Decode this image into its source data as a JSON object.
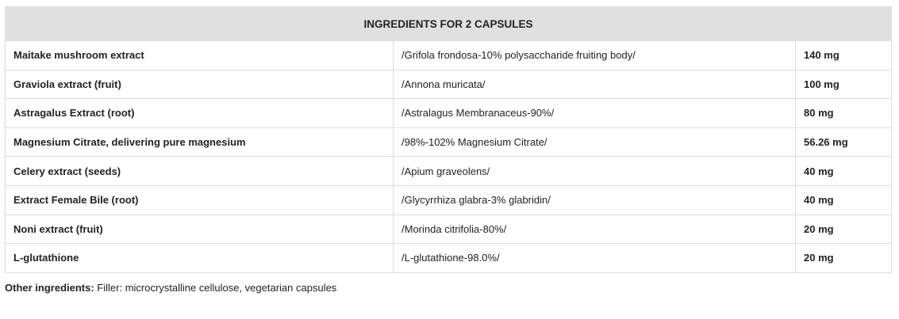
{
  "table": {
    "header": "INGREDIENTS FOR 2 CAPSULES",
    "rows": [
      {
        "name": "Maitake mushroom extract",
        "desc": "/Grifola frondosa-10% polysaccharide fruiting body/",
        "amount": "140 mg"
      },
      {
        "name": "Graviola extract (fruit)",
        "desc": "/Annona muricata/",
        "amount": "100 mg"
      },
      {
        "name": "Astragalus Extract (root)",
        "desc": "/Astralagus Membranaceus-90%/",
        "amount": "80 mg"
      },
      {
        "name": "Magnesium Citrate, delivering pure magnesium",
        "desc": "/98%-102% Magnesium Citrate/",
        "amount": "56.26 mg"
      },
      {
        "name": "Celery extract (seeds)",
        "desc": "/Apium graveolens/",
        "amount": "40 mg"
      },
      {
        "name": "Extract Female Bile (root)",
        "desc": "/Glycyrrhiza glabra-3% glabridin/",
        "amount": "40 mg"
      },
      {
        "name": "Noni extract (fruit)",
        "desc": "/Morinda citrifolia-80%/",
        "amount": "20 mg"
      },
      {
        "name": "L-glutathione",
        "desc": "/L-glutathione-98.0%/",
        "amount": "20 mg"
      }
    ]
  },
  "other": {
    "label": "Other ingredients:",
    "text": " Filler: microcrystalline cellulose, vegetarian capsules"
  }
}
